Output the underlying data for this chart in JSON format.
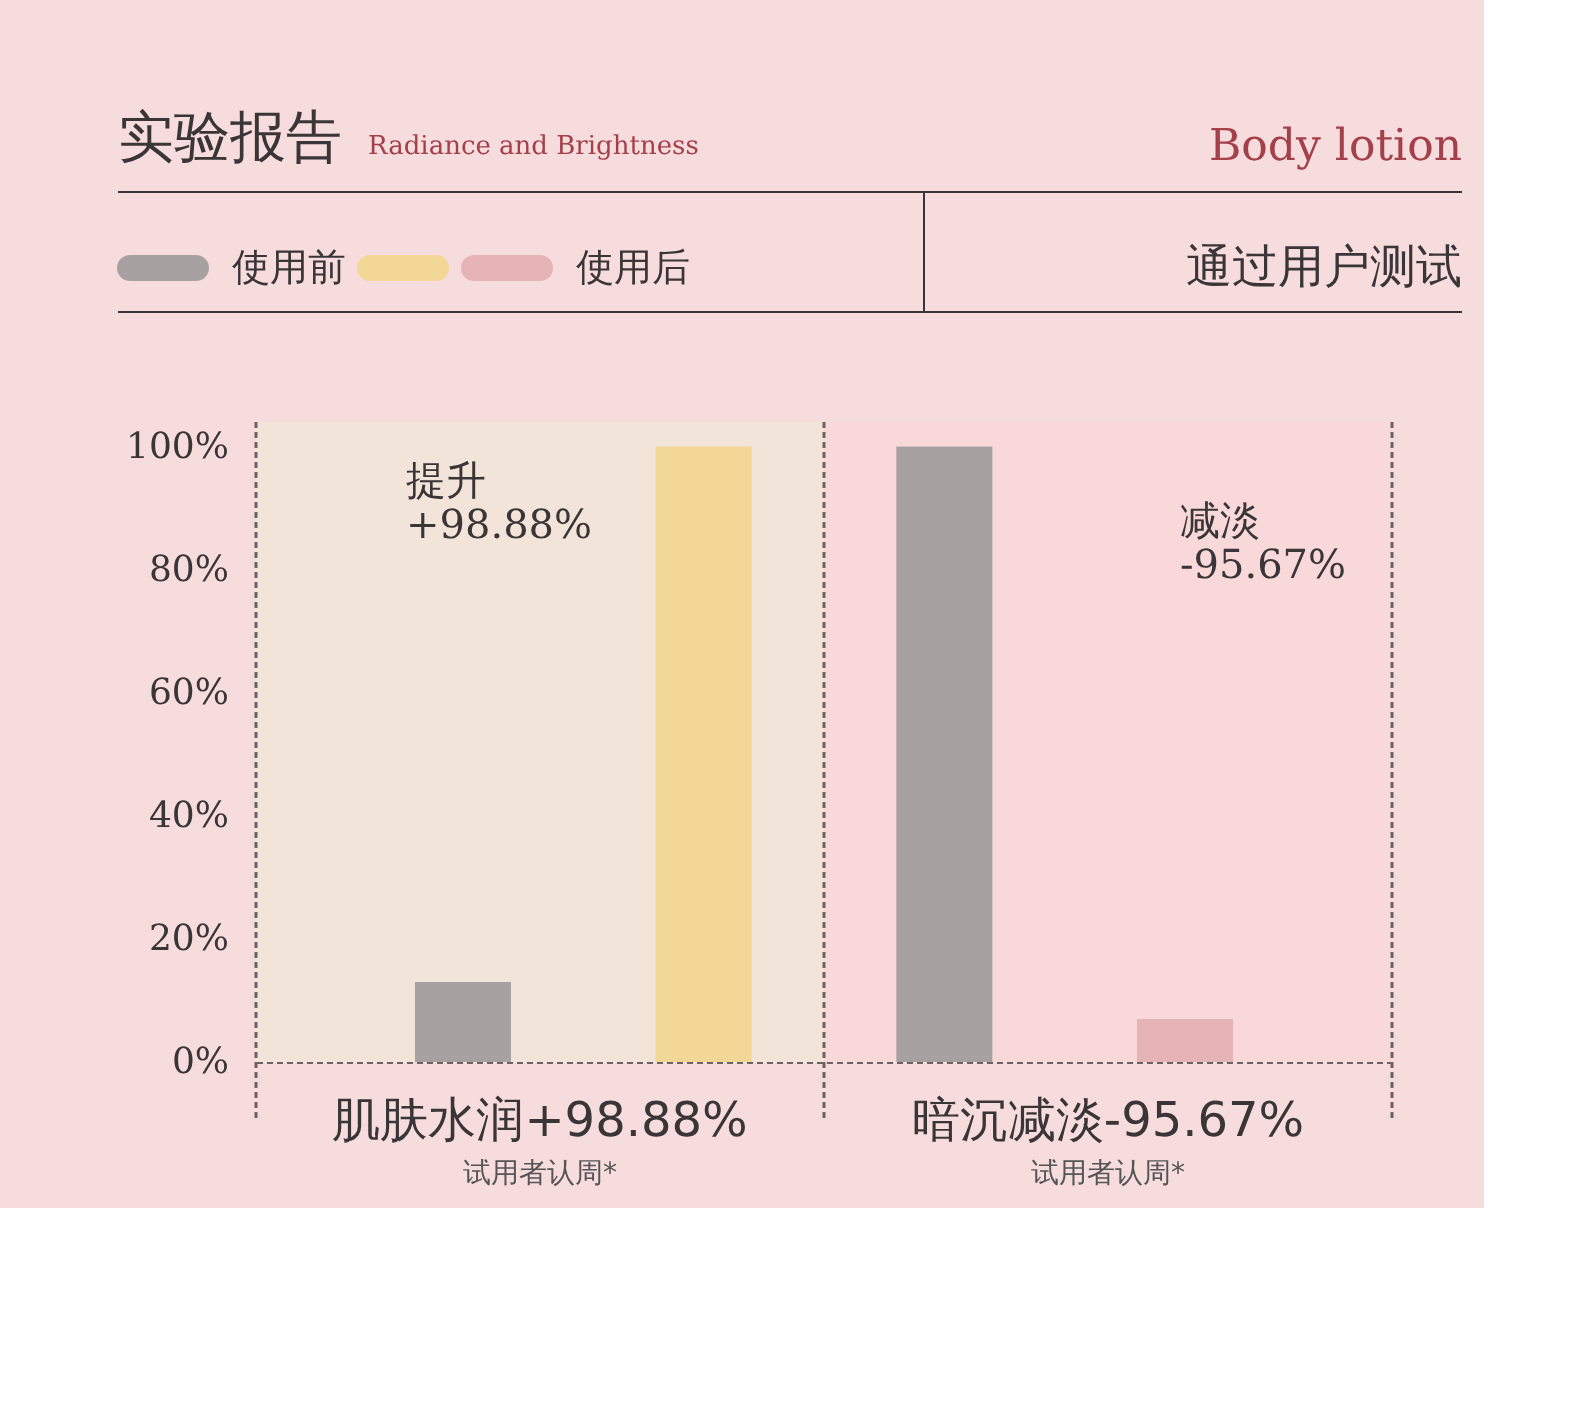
{
  "chart_data": {
    "type": "bar",
    "title": "实验报告",
    "subtitle": "Radiance and Brightness",
    "tick_labels": "y",
    "categories": [
      null,
      null,
      null,
      null
    ],
    "values": [
      13,
      100,
      100,
      7
    ],
    "colors": [
      "#a7a1a2",
      "#f2d796",
      "#a7a1a2",
      "#e6b3b6"
    ],
    "ylim": [
      0,
      104
    ],
    "yticks": [
      {
        "value": 0,
        "label": "0%"
      },
      {
        "value": 20,
        "label": "20%"
      },
      {
        "value": 40,
        "label": "40%"
      },
      {
        "value": 60,
        "label": "60%"
      },
      {
        "value": 80,
        "label": "80%"
      },
      {
        "value": 100,
        "label": "100%"
      }
    ],
    "annotations": [
      "Body lotion",
      "通过用户测试",
      "使用前",
      "使用后",
      "提升\n+98.88%",
      "减淡\n-95.67%",
      "肌肤水润+98.88%",
      "暗沉减淡-95.67%",
      "试用者认周*",
      "试用者认周*"
    ]
  }
}
